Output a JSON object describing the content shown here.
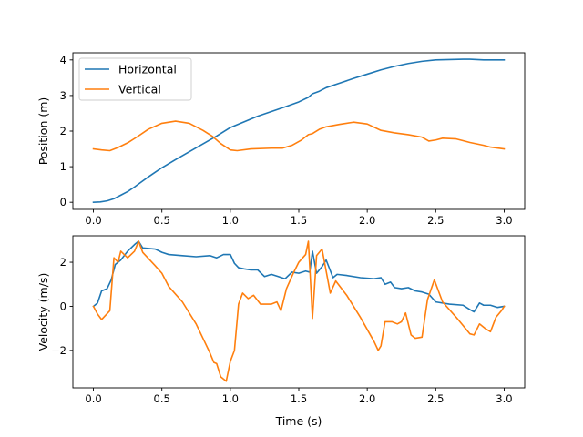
{
  "chart_data": [
    {
      "type": "line",
      "ylabel": "Position (m)",
      "xlabel": "",
      "xlim": [
        -0.15,
        3.15
      ],
      "ylim": [
        -0.2,
        4.2
      ],
      "xticks": [
        "0.0",
        "0.5",
        "1.0",
        "1.5",
        "2.0",
        "2.5",
        "3.0"
      ],
      "yticks": [
        "0",
        "1",
        "2",
        "3",
        "4"
      ],
      "legend": "upper-left",
      "grid": false,
      "series": [
        {
          "name": "Horizontal",
          "color": "#1f77b4",
          "points": [
            [
              0,
              0
            ],
            [
              0.05,
              0.01
            ],
            [
              0.1,
              0.04
            ],
            [
              0.15,
              0.1
            ],
            [
              0.2,
              0.2
            ],
            [
              0.25,
              0.3
            ],
            [
              0.3,
              0.43
            ],
            [
              0.35,
              0.57
            ],
            [
              0.4,
              0.71
            ],
            [
              0.45,
              0.84
            ],
            [
              0.5,
              0.97
            ],
            [
              0.6,
              1.2
            ],
            [
              0.7,
              1.42
            ],
            [
              0.8,
              1.64
            ],
            [
              0.9,
              1.86
            ],
            [
              1.0,
              2.1
            ],
            [
              1.1,
              2.26
            ],
            [
              1.2,
              2.42
            ],
            [
              1.3,
              2.55
            ],
            [
              1.4,
              2.68
            ],
            [
              1.5,
              2.82
            ],
            [
              1.57,
              2.95
            ],
            [
              1.6,
              3.05
            ],
            [
              1.65,
              3.12
            ],
            [
              1.7,
              3.22
            ],
            [
              1.8,
              3.35
            ],
            [
              1.9,
              3.48
            ],
            [
              2.0,
              3.6
            ],
            [
              2.1,
              3.72
            ],
            [
              2.2,
              3.82
            ],
            [
              2.3,
              3.9
            ],
            [
              2.4,
              3.96
            ],
            [
              2.5,
              4.0
            ],
            [
              2.6,
              4.01
            ],
            [
              2.7,
              4.02
            ],
            [
              2.75,
              4.02
            ],
            [
              2.8,
              4.01
            ],
            [
              2.85,
              4.0
            ],
            [
              3.0,
              4.0
            ]
          ]
        },
        {
          "name": "Vertical",
          "color": "#ff7f0e",
          "points": [
            [
              0,
              1.5
            ],
            [
              0.06,
              1.47
            ],
            [
              0.12,
              1.45
            ],
            [
              0.18,
              1.54
            ],
            [
              0.25,
              1.67
            ],
            [
              0.32,
              1.84
            ],
            [
              0.4,
              2.05
            ],
            [
              0.5,
              2.22
            ],
            [
              0.6,
              2.28
            ],
            [
              0.7,
              2.22
            ],
            [
              0.8,
              2.02
            ],
            [
              0.87,
              1.85
            ],
            [
              0.93,
              1.65
            ],
            [
              1.0,
              1.47
            ],
            [
              1.05,
              1.45
            ],
            [
              1.15,
              1.5
            ],
            [
              1.3,
              1.52
            ],
            [
              1.38,
              1.52
            ],
            [
              1.45,
              1.6
            ],
            [
              1.52,
              1.75
            ],
            [
              1.57,
              1.9
            ],
            [
              1.6,
              1.93
            ],
            [
              1.65,
              2.05
            ],
            [
              1.7,
              2.12
            ],
            [
              1.8,
              2.19
            ],
            [
              1.9,
              2.25
            ],
            [
              2.0,
              2.2
            ],
            [
              2.1,
              2.02
            ],
            [
              2.2,
              1.95
            ],
            [
              2.3,
              1.9
            ],
            [
              2.4,
              1.83
            ],
            [
              2.45,
              1.72
            ],
            [
              2.5,
              1.75
            ],
            [
              2.55,
              1.8
            ],
            [
              2.65,
              1.78
            ],
            [
              2.75,
              1.68
            ],
            [
              2.85,
              1.6
            ],
            [
              2.9,
              1.55
            ],
            [
              3.0,
              1.5
            ]
          ]
        }
      ]
    },
    {
      "type": "line",
      "ylabel": "Velocity (m/s)",
      "xlabel": "Time (s)",
      "xlim": [
        -0.15,
        3.15
      ],
      "ylim": [
        -3.7,
        3.2
      ],
      "xticks": [
        "0.0",
        "0.5",
        "1.0",
        "1.5",
        "2.0",
        "2.5",
        "3.0"
      ],
      "yticks": [
        "−2",
        "0",
        "2"
      ],
      "grid": false,
      "series": [
        {
          "name": "Horizontal",
          "color": "#1f77b4",
          "points": [
            [
              0,
              0
            ],
            [
              0.03,
              0.15
            ],
            [
              0.06,
              0.7
            ],
            [
              0.1,
              0.8
            ],
            [
              0.13,
              1.2
            ],
            [
              0.16,
              1.9
            ],
            [
              0.2,
              2.1
            ],
            [
              0.25,
              2.5
            ],
            [
              0.3,
              2.8
            ],
            [
              0.33,
              2.95
            ],
            [
              0.36,
              2.65
            ],
            [
              0.45,
              2.6
            ],
            [
              0.5,
              2.45
            ],
            [
              0.55,
              2.35
            ],
            [
              0.65,
              2.3
            ],
            [
              0.75,
              2.25
            ],
            [
              0.85,
              2.3
            ],
            [
              0.9,
              2.2
            ],
            [
              0.95,
              2.35
            ],
            [
              1.0,
              2.35
            ],
            [
              1.03,
              1.95
            ],
            [
              1.06,
              1.75
            ],
            [
              1.1,
              1.7
            ],
            [
              1.15,
              1.65
            ],
            [
              1.2,
              1.65
            ],
            [
              1.25,
              1.35
            ],
            [
              1.3,
              1.45
            ],
            [
              1.35,
              1.35
            ],
            [
              1.4,
              1.25
            ],
            [
              1.45,
              1.55
            ],
            [
              1.5,
              1.5
            ],
            [
              1.55,
              1.6
            ],
            [
              1.58,
              1.55
            ],
            [
              1.6,
              2.5
            ],
            [
              1.63,
              1.5
            ],
            [
              1.67,
              1.8
            ],
            [
              1.7,
              2.1
            ],
            [
              1.75,
              1.3
            ],
            [
              1.78,
              1.45
            ],
            [
              1.85,
              1.4
            ],
            [
              1.95,
              1.3
            ],
            [
              2.05,
              1.25
            ],
            [
              2.1,
              1.3
            ],
            [
              2.13,
              1.0
            ],
            [
              2.17,
              1.1
            ],
            [
              2.2,
              0.85
            ],
            [
              2.25,
              0.8
            ],
            [
              2.3,
              0.85
            ],
            [
              2.35,
              0.7
            ],
            [
              2.4,
              0.65
            ],
            [
              2.45,
              0.55
            ],
            [
              2.5,
              0.2
            ],
            [
              2.6,
              0.1
            ],
            [
              2.7,
              0.05
            ],
            [
              2.75,
              -0.15
            ],
            [
              2.78,
              -0.25
            ],
            [
              2.82,
              0.15
            ],
            [
              2.85,
              0.05
            ],
            [
              2.9,
              0.05
            ],
            [
              2.95,
              -0.05
            ],
            [
              3.0,
              0.0
            ]
          ]
        },
        {
          "name": "Vertical",
          "color": "#ff7f0e",
          "points": [
            [
              0,
              0
            ],
            [
              0.03,
              -0.35
            ],
            [
              0.06,
              -0.6
            ],
            [
              0.12,
              -0.2
            ],
            [
              0.15,
              2.2
            ],
            [
              0.18,
              2.0
            ],
            [
              0.2,
              2.5
            ],
            [
              0.25,
              2.2
            ],
            [
              0.3,
              2.5
            ],
            [
              0.33,
              2.95
            ],
            [
              0.36,
              2.45
            ],
            [
              0.45,
              1.85
            ],
            [
              0.5,
              1.5
            ],
            [
              0.55,
              0.9
            ],
            [
              0.65,
              0.2
            ],
            [
              0.75,
              -0.8
            ],
            [
              0.85,
              -2.1
            ],
            [
              0.88,
              -2.55
            ],
            [
              0.9,
              -2.6
            ],
            [
              0.93,
              -3.2
            ],
            [
              0.97,
              -3.4
            ],
            [
              1.0,
              -2.5
            ],
            [
              1.03,
              -2.0
            ],
            [
              1.06,
              0.1
            ],
            [
              1.09,
              0.6
            ],
            [
              1.13,
              0.35
            ],
            [
              1.17,
              0.5
            ],
            [
              1.22,
              0.1
            ],
            [
              1.3,
              0.1
            ],
            [
              1.34,
              0.2
            ],
            [
              1.37,
              -0.2
            ],
            [
              1.41,
              0.8
            ],
            [
              1.46,
              1.5
            ],
            [
              1.5,
              2.0
            ],
            [
              1.55,
              2.35
            ],
            [
              1.57,
              2.95
            ],
            [
              1.6,
              -0.55
            ],
            [
              1.63,
              2.3
            ],
            [
              1.67,
              2.6
            ],
            [
              1.7,
              1.6
            ],
            [
              1.73,
              0.6
            ],
            [
              1.77,
              1.15
            ],
            [
              1.85,
              0.5
            ],
            [
              1.95,
              -0.5
            ],
            [
              2.05,
              -1.6
            ],
            [
              2.08,
              -2.0
            ],
            [
              2.1,
              -1.8
            ],
            [
              2.13,
              -0.7
            ],
            [
              2.18,
              -0.7
            ],
            [
              2.22,
              -0.8
            ],
            [
              2.25,
              -0.7
            ],
            [
              2.28,
              -0.3
            ],
            [
              2.32,
              -1.3
            ],
            [
              2.35,
              -1.45
            ],
            [
              2.4,
              -1.4
            ],
            [
              2.44,
              0.3
            ],
            [
              2.49,
              1.2
            ],
            [
              2.55,
              0.2
            ],
            [
              2.65,
              -0.5
            ],
            [
              2.75,
              -1.25
            ],
            [
              2.78,
              -1.3
            ],
            [
              2.82,
              -0.8
            ],
            [
              2.86,
              -1.0
            ],
            [
              2.9,
              -1.15
            ],
            [
              2.94,
              -0.5
            ],
            [
              2.98,
              -0.2
            ],
            [
              3.0,
              0.0
            ]
          ]
        }
      ]
    }
  ]
}
